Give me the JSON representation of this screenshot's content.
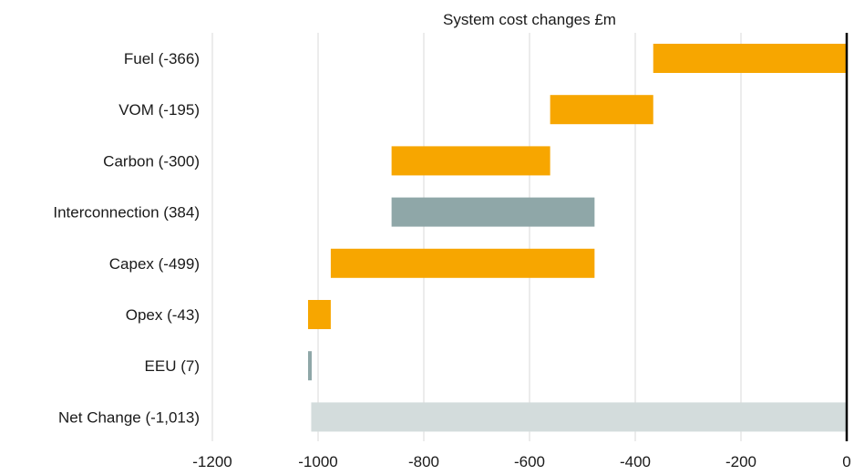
{
  "chart_data": {
    "type": "bar",
    "orientation": "horizontal",
    "subtype": "waterfall",
    "title": "System cost changes £m",
    "xlabel": "",
    "ylabel": "",
    "xlim": [
      -1200,
      0
    ],
    "xticks": [
      -1200,
      -1000,
      -800,
      -600,
      -400,
      -200,
      0
    ],
    "grid": true,
    "legend": "none",
    "categories": [
      "Fuel (-366)",
      "VOM (-195)",
      "Carbon (-300)",
      "Interconnection (384)",
      "Capex (-499)",
      "Opex (-43)",
      "EEU (7)",
      "Net Change (-1,013)"
    ],
    "bars": [
      {
        "start": 0,
        "end": -366,
        "color": "#f7a600"
      },
      {
        "start": -366,
        "end": -561,
        "color": "#f7a600"
      },
      {
        "start": -561,
        "end": -861,
        "color": "#f7a600"
      },
      {
        "start": -861,
        "end": -477,
        "color": "#8fa7a8"
      },
      {
        "start": -477,
        "end": -976,
        "color": "#f7a600"
      },
      {
        "start": -976,
        "end": -1019,
        "color": "#f7a600"
      },
      {
        "start": -1019,
        "end": -1012,
        "color": "#8fa7a8"
      },
      {
        "start": 0,
        "end": -1013,
        "color": "#d3dcdc"
      }
    ]
  }
}
